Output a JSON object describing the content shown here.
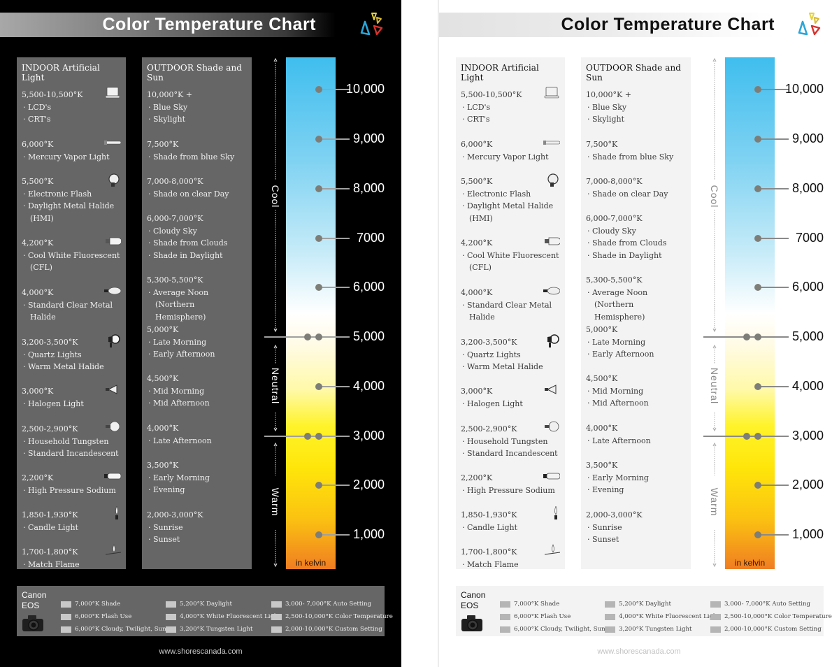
{
  "title": "Color Temperature Chart",
  "indoor": {
    "title": "INDOOR Artificial Light",
    "entries": [
      {
        "temp": "5,500-10,500°K",
        "items": [
          "· LCD's",
          "· CRT's"
        ],
        "icon": "monitor-icon"
      },
      {
        "temp": "6,000°K",
        "items": [
          "· Mercury Vapor Light"
        ],
        "icon": "tube-lamp-icon"
      },
      {
        "temp": "5,500°K",
        "items": [
          "· Electronic Flash",
          "· Daylight Metal Halide",
          "(HMI)"
        ],
        "icon": "flash-head-icon"
      },
      {
        "temp": "4,200°K",
        "items": [
          "· Cool White Fluorescent",
          "(CFL)"
        ],
        "icon": "cfl-bulb-icon"
      },
      {
        "temp": "4,000°K",
        "items": [
          "· Standard Clear Metal",
          "Halide"
        ],
        "icon": "metal-halide-bulb-icon"
      },
      {
        "temp": "3,200-3,500°K",
        "items": [
          "· Quartz Lights",
          "· Warm Metal Halide"
        ],
        "icon": "studio-light-icon"
      },
      {
        "temp": "3,000°K",
        "items": [
          "· Halogen Light"
        ],
        "icon": "halogen-bulb-icon"
      },
      {
        "temp": "2,500-2,900°K",
        "items": [
          "· Household Tungsten",
          "· Standard Incandescent"
        ],
        "icon": "incandescent-bulb-icon"
      },
      {
        "temp": "2,200°K",
        "items": [
          "· High Pressure Sodium"
        ],
        "icon": "sodium-lamp-icon"
      },
      {
        "temp": "1,850-1,930°K",
        "items": [
          "· Candle Light"
        ],
        "icon": "candle-icon"
      },
      {
        "temp": "1,700-1,800°K",
        "items": [
          "· Match Flame"
        ],
        "icon": "match-icon"
      }
    ]
  },
  "outdoor": {
    "title": "OUTDOOR Shade and Sun",
    "entries": [
      {
        "temp": "10,000°K +",
        "items": [
          "· Blue Sky",
          "· Skylight"
        ]
      },
      {
        "temp": "7,500°K",
        "items": [
          "· Shade from blue Sky"
        ]
      },
      {
        "temp": "7,000-8,000°K",
        "items": [
          "· Shade on clear Day"
        ]
      },
      {
        "temp": "6,000-7,000°K",
        "items": [
          "· Cloudy Sky",
          "· Shade from Clouds",
          "· Shade in Daylight"
        ]
      },
      {
        "temp": "5,300-5,500°K",
        "items": [
          "· Average Noon",
          "(Northern Hemisphere)"
        ]
      },
      {
        "temp": "5,000°K",
        "items": [
          "· Late Morning",
          "· Early Afternoon"
        ]
      },
      {
        "temp": "4,500°K",
        "items": [
          "· Mid Morning",
          "· Mid Afternoon"
        ]
      },
      {
        "temp": "4,000°K",
        "items": [
          "· Late Afternoon"
        ]
      },
      {
        "temp": "3,500°K",
        "items": [
          "· Early Morning",
          "· Evening"
        ]
      },
      {
        "temp": "2,000-3,000°K",
        "items": [
          "· Sunrise",
          "· Sunset"
        ]
      }
    ]
  },
  "scale": {
    "unit_label": "in kelvin",
    "zones": [
      "Cool",
      "Neutral",
      "Warm"
    ],
    "ticks": [
      "10,000",
      "9,000",
      "8,000",
      "7000",
      "6,000",
      "5,000",
      "4,000",
      "3,000",
      "2,000",
      "1,000"
    ],
    "colors": {
      "cool": "#3fbeee",
      "neutral": "#ffffff",
      "warm_yellow": "#fff32a",
      "warm_orange": "#f07d22"
    }
  },
  "canon": {
    "title_line1": "Canon",
    "title_line2": "EOS",
    "modes": [
      "7,000°K Shade",
      "5,200°K Daylight",
      "3,000- 7,000°K Auto Setting",
      "6,000°K Flash Use",
      "4,000°K White Fluorescent Light",
      "2,500-10,000°K Color Temperature",
      "6,000°K Cloudy, Twilight, Sunset",
      "3,200°K Tungsten Light",
      "2,000-10,000°K Custom Setting"
    ]
  },
  "footer": "www.shorescanada.com",
  "chart_data": {
    "type": "table",
    "title": "Color Temperature Chart",
    "scale": {
      "type": "gradient-bar",
      "unit": "kelvin",
      "ticks": [
        10000,
        9000,
        8000,
        7000,
        6000,
        5000,
        4000,
        3000,
        2000,
        1000
      ],
      "zones": [
        {
          "name": "Cool",
          "range": [
            5000,
            10000
          ]
        },
        {
          "name": "Neutral",
          "range": [
            3000,
            5000
          ]
        },
        {
          "name": "Warm",
          "range": [
            1000,
            3000
          ]
        }
      ],
      "double_marked_boundaries": [
        5000,
        3000
      ]
    },
    "columns": [
      "INDOOR Artificial Light",
      "OUTDOOR Shade and Sun"
    ],
    "indoor": [
      {
        "kelvin": "5,500-10,500",
        "sources": [
          "LCD's",
          "CRT's"
        ]
      },
      {
        "kelvin": "6,000",
        "sources": [
          "Mercury Vapor Light"
        ]
      },
      {
        "kelvin": "5,500",
        "sources": [
          "Electronic Flash",
          "Daylight Metal Halide (HMI)"
        ]
      },
      {
        "kelvin": "4,200",
        "sources": [
          "Cool White Fluorescent (CFL)"
        ]
      },
      {
        "kelvin": "4,000",
        "sources": [
          "Standard Clear Metal Halide"
        ]
      },
      {
        "kelvin": "3,200-3,500",
        "sources": [
          "Quartz Lights",
          "Warm Metal Halide"
        ]
      },
      {
        "kelvin": "3,000",
        "sources": [
          "Halogen Light"
        ]
      },
      {
        "kelvin": "2,500-2,900",
        "sources": [
          "Household Tungsten",
          "Standard Incandescent"
        ]
      },
      {
        "kelvin": "2,200",
        "sources": [
          "High Pressure Sodium"
        ]
      },
      {
        "kelvin": "1,850-1,930",
        "sources": [
          "Candle Light"
        ]
      },
      {
        "kelvin": "1,700-1,800",
        "sources": [
          "Match Flame"
        ]
      }
    ],
    "outdoor": [
      {
        "kelvin": "10,000+",
        "sources": [
          "Blue Sky",
          "Skylight"
        ]
      },
      {
        "kelvin": "7,500",
        "sources": [
          "Shade from blue Sky"
        ]
      },
      {
        "kelvin": "7,000-8,000",
        "sources": [
          "Shade on clear Day"
        ]
      },
      {
        "kelvin": "6,000-7,000",
        "sources": [
          "Cloudy Sky",
          "Shade from Clouds",
          "Shade in Daylight"
        ]
      },
      {
        "kelvin": "5,300-5,500",
        "sources": [
          "Average Noon (Northern Hemisphere)"
        ]
      },
      {
        "kelvin": "5,000",
        "sources": [
          "Late Morning",
          "Early Afternoon"
        ]
      },
      {
        "kelvin": "4,500",
        "sources": [
          "Mid Morning",
          "Mid Afternoon"
        ]
      },
      {
        "kelvin": "4,000",
        "sources": [
          "Late Afternoon"
        ]
      },
      {
        "kelvin": "3,500",
        "sources": [
          "Early Morning",
          "Evening"
        ]
      },
      {
        "kelvin": "2,000-3,000",
        "sources": [
          "Sunrise",
          "Sunset"
        ]
      }
    ],
    "canon_eos_white_balance": [
      {
        "mode": "Shade",
        "kelvin": "7,000"
      },
      {
        "mode": "Flash Use",
        "kelvin": "6,000"
      },
      {
        "mode": "Cloudy, Twilight, Sunset",
        "kelvin": "6,000"
      },
      {
        "mode": "Daylight",
        "kelvin": "5,200"
      },
      {
        "mode": "White Fluorescent Light",
        "kelvin": "4,000"
      },
      {
        "mode": "Tungsten Light",
        "kelvin": "3,200"
      },
      {
        "mode": "Auto Setting",
        "kelvin": "3,000-7,000"
      },
      {
        "mode": "Color Temperature",
        "kelvin": "2,500-10,000"
      },
      {
        "mode": "Custom Setting",
        "kelvin": "2,000-10,000"
      }
    ],
    "variants": [
      "dark",
      "light"
    ]
  }
}
